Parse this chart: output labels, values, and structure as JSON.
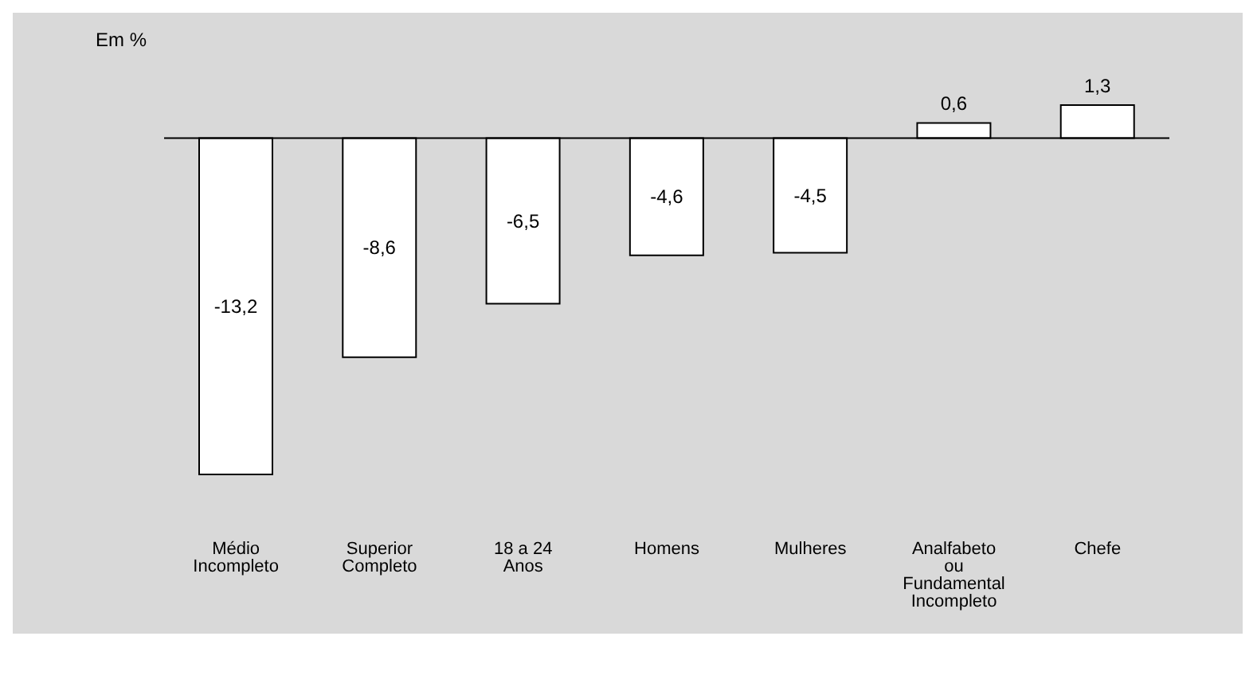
{
  "chart_data": {
    "type": "bar",
    "ylabel": "Em %",
    "categories": [
      "Médio Incompleto",
      "Superior Completo",
      "18 a 24 Anos",
      "Homens",
      "Mulheres",
      "Analfabeto ou Fundamental Incompleto",
      "Chefe"
    ],
    "values": [
      -13.2,
      -8.6,
      -6.5,
      -4.6,
      -4.5,
      0.6,
      1.3
    ],
    "value_labels": [
      "-13,2",
      "-8,6",
      "-6,5",
      "-4,6",
      "-4,5",
      "0,6",
      "1,3"
    ],
    "color": "#ffffff"
  }
}
